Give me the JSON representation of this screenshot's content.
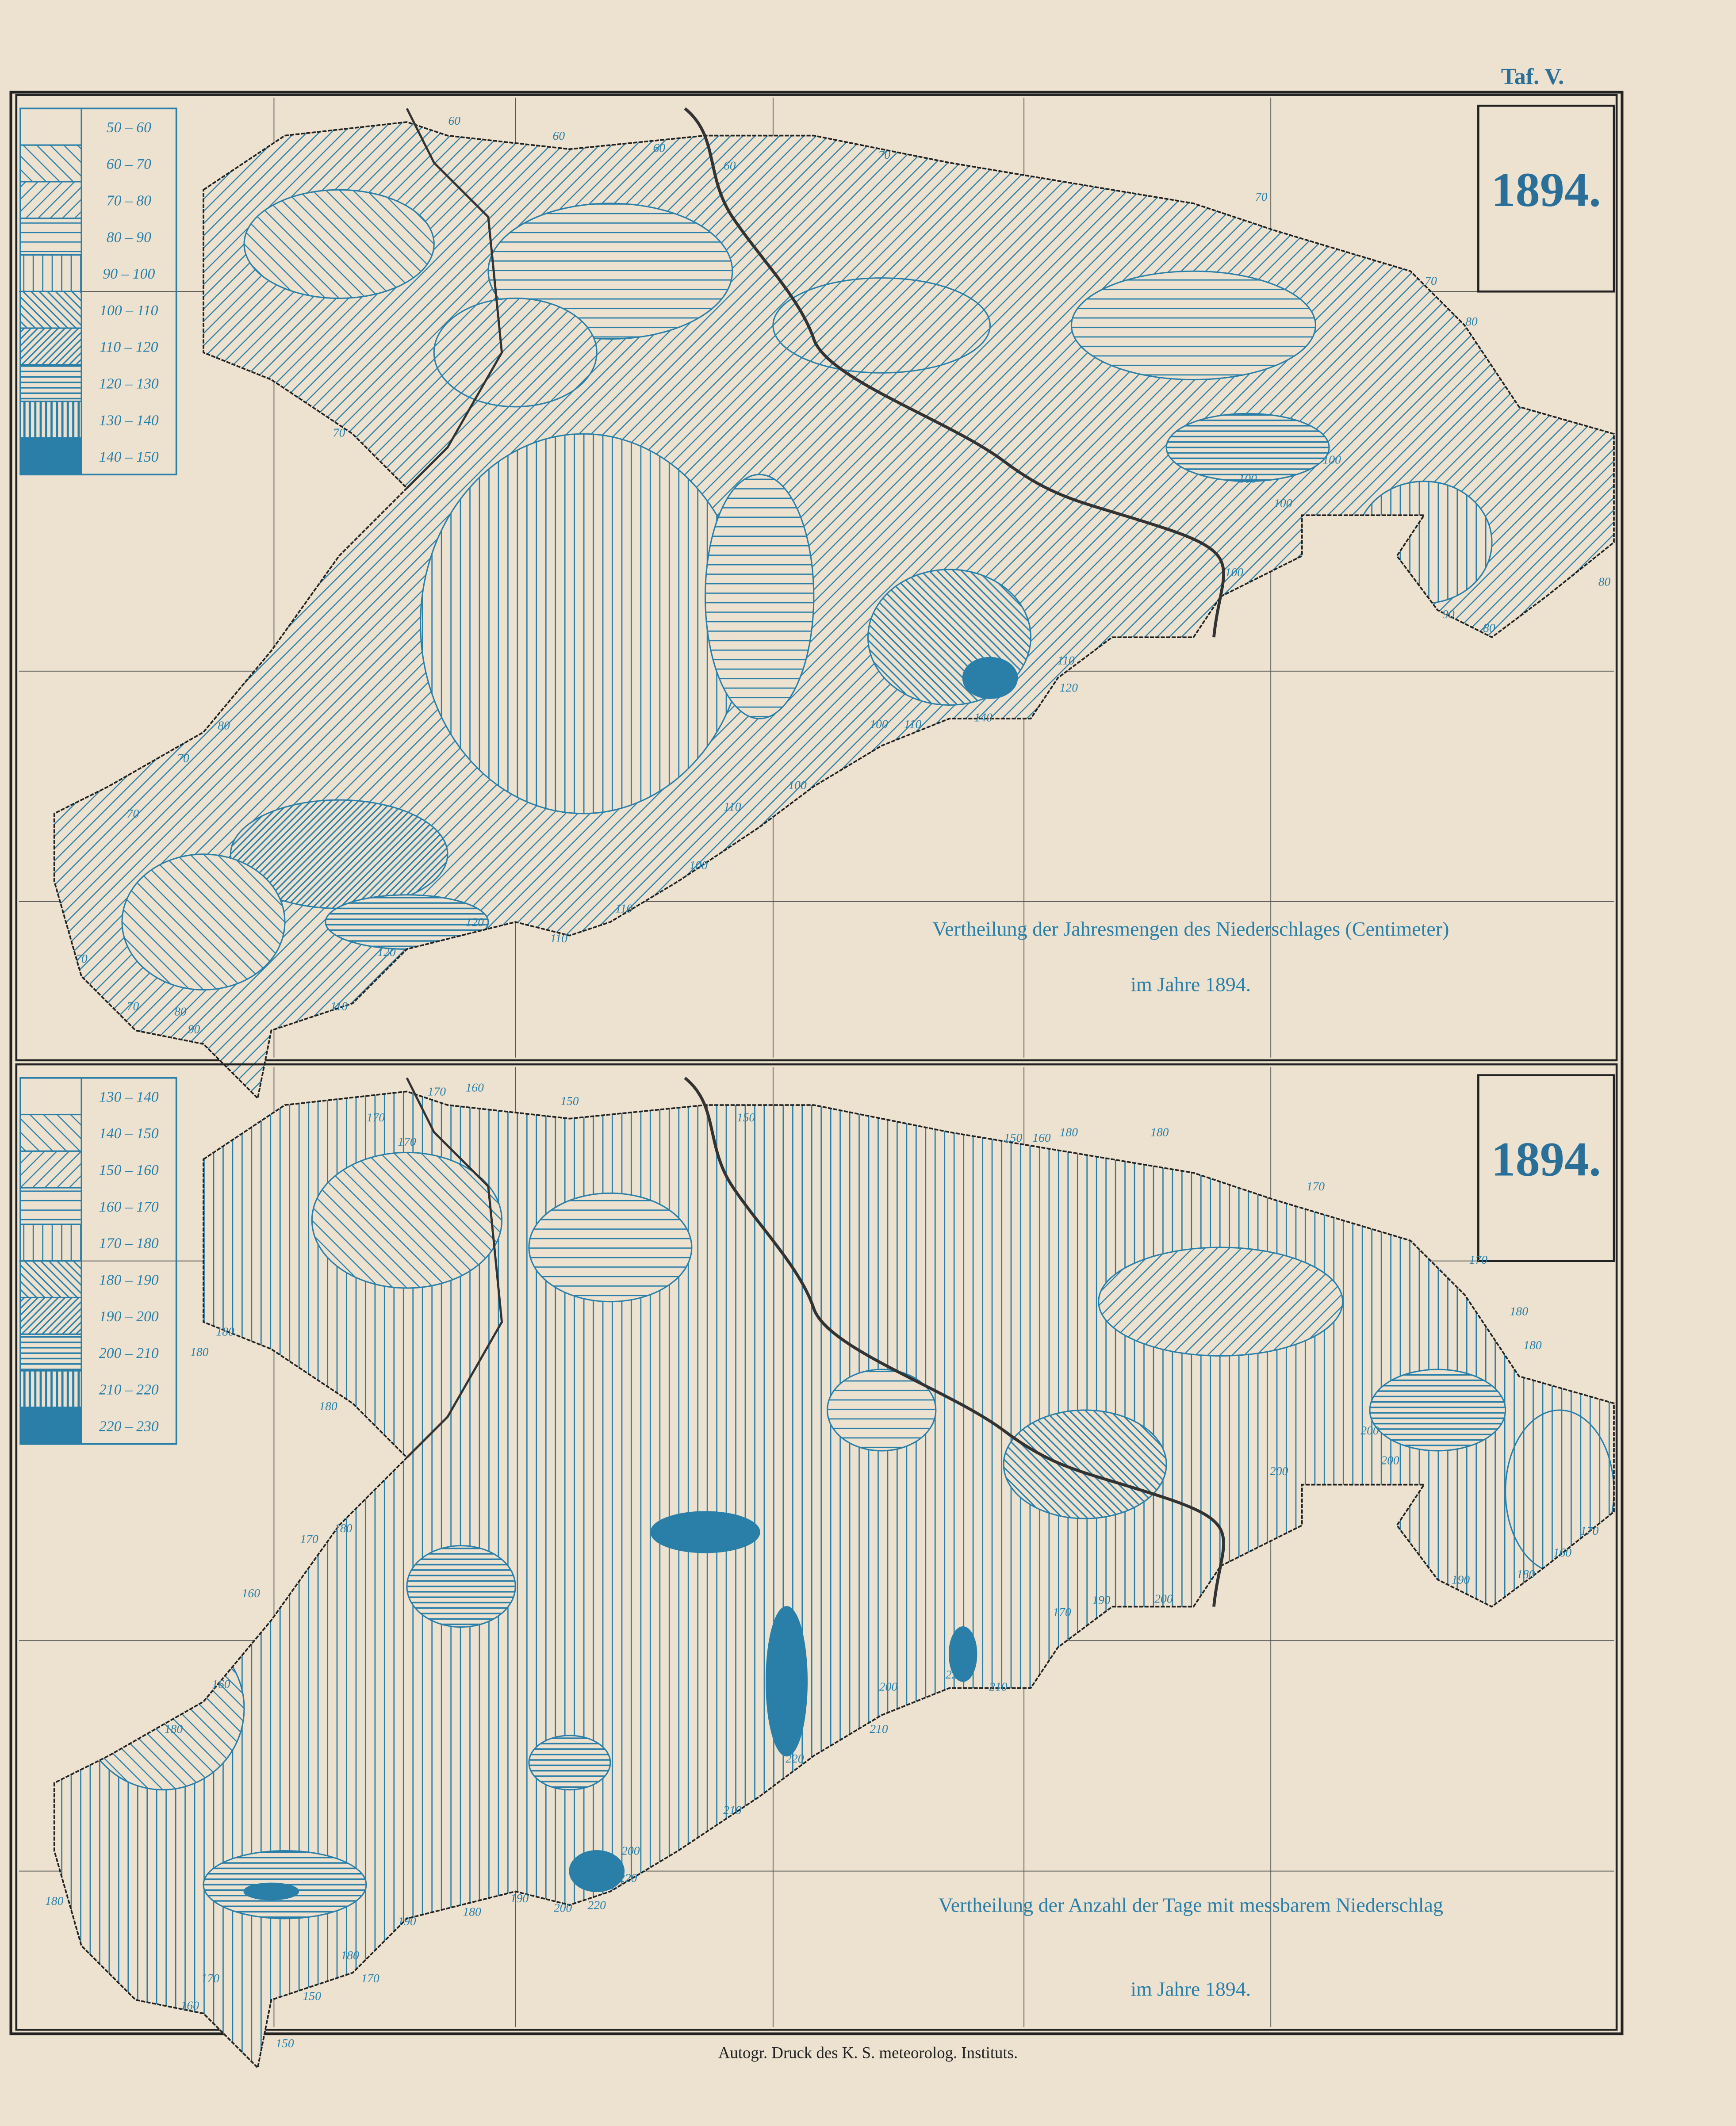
{
  "plate": "Taf. V.",
  "maps": [
    {
      "year": "1894.",
      "legend": [
        "50 – 60",
        "60 – 70",
        "70 – 80",
        "80 – 90",
        "90 – 100",
        "100 – 110",
        "110 – 120",
        "120 – 130",
        "130 – 140",
        "140 – 150"
      ],
      "caption": [
        "Vertheilung der Jahresmengen des Niederschlages (Centimeter)",
        "im Jahre 1894."
      ],
      "contour_labels": [
        "60",
        "60",
        "60",
        "60",
        "70",
        "70",
        "70",
        "80",
        "100",
        "100",
        "100",
        "100",
        "90",
        "80",
        "80",
        "140",
        "120",
        "110",
        "100",
        "110",
        "100",
        "110",
        "100",
        "110",
        "120",
        "110",
        "120",
        "110",
        "70",
        "70",
        "80",
        "90",
        "70",
        "80",
        "70",
        "70"
      ]
    },
    {
      "year": "1894.",
      "legend": [
        "130 – 140",
        "140 – 150",
        "150 – 160",
        "160 – 170",
        "170 – 180",
        "180 – 190",
        "190 – 200",
        "200 – 210",
        "210 – 220",
        "220 – 230"
      ],
      "caption": [
        "Vertheilung der Anzahl der Tage mit messbarem Niederschlag",
        "im Jahre 1894."
      ],
      "contour_labels": [
        "170",
        "160",
        "150",
        "170",
        "170",
        "150",
        "150",
        "160",
        "180",
        "180",
        "170",
        "170",
        "180",
        "180",
        "200",
        "200",
        "200",
        "170",
        "160",
        "180",
        "190",
        "180",
        "180",
        "180",
        "170",
        "180",
        "160",
        "160",
        "180",
        "170",
        "190",
        "200",
        "210",
        "220",
        "200",
        "210",
        "220",
        "210",
        "200",
        "220",
        "220",
        "200",
        "190",
        "180",
        "190",
        "180",
        "170",
        "170",
        "160",
        "150",
        "150",
        "180"
      ]
    }
  ],
  "footer": "Autogr. Druck des K. S. meteorolog. Instituts."
}
